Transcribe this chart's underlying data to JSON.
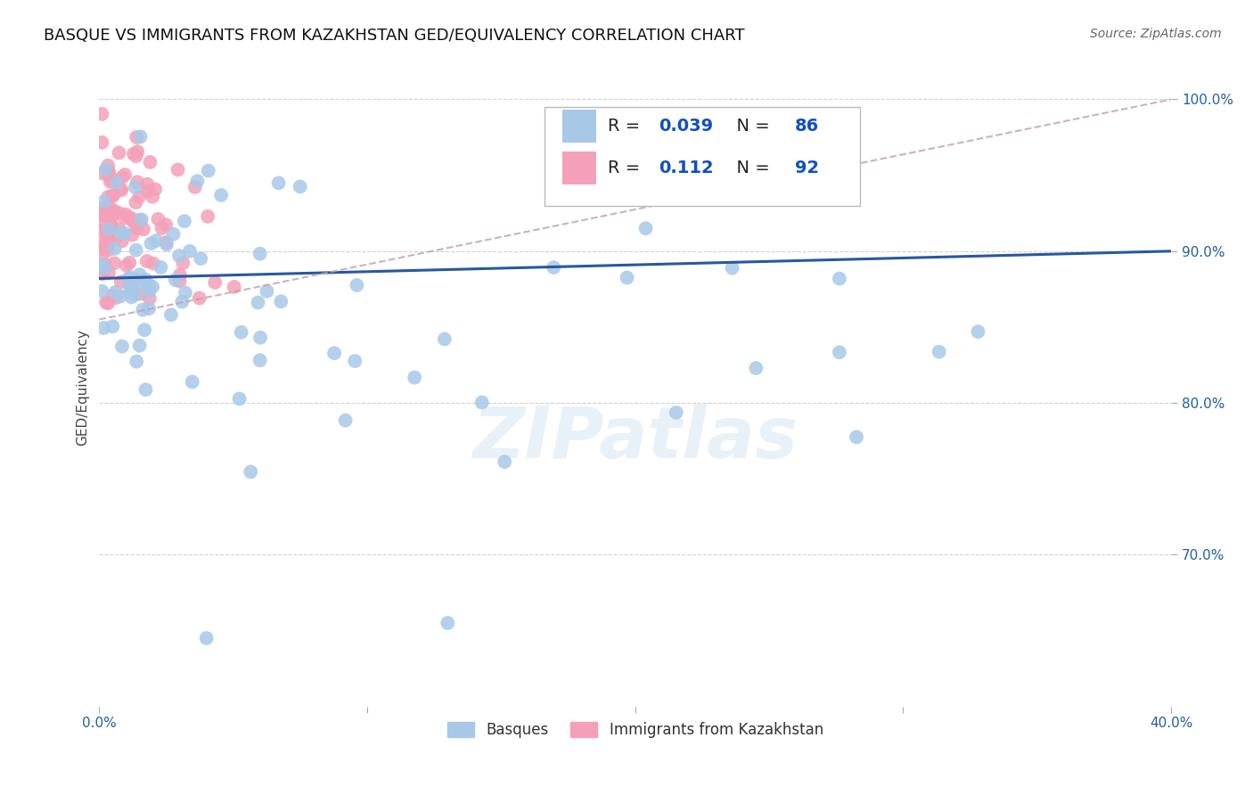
{
  "title": "BASQUE VS IMMIGRANTS FROM KAZAKHSTAN GED/EQUIVALENCY CORRELATION CHART",
  "source": "Source: ZipAtlas.com",
  "ylabel": "GED/Equivalency",
  "watermark": "ZIPatlas",
  "x_min": 0.0,
  "x_max": 0.4,
  "y_min": 0.6,
  "y_max": 1.02,
  "basque_R": 0.039,
  "basque_N": 86,
  "kazakh_R": 0.112,
  "kazakh_N": 92,
  "basque_color": "#a8c8e8",
  "kazakh_color": "#f4a0b8",
  "basque_line_color": "#2858a0",
  "kazakh_line_color": "#d08090",
  "grid_color": "#cccccc",
  "background_color": "#ffffff",
  "title_fontsize": 13,
  "axis_label_fontsize": 11,
  "tick_fontsize": 11,
  "legend_fontsize": 14
}
